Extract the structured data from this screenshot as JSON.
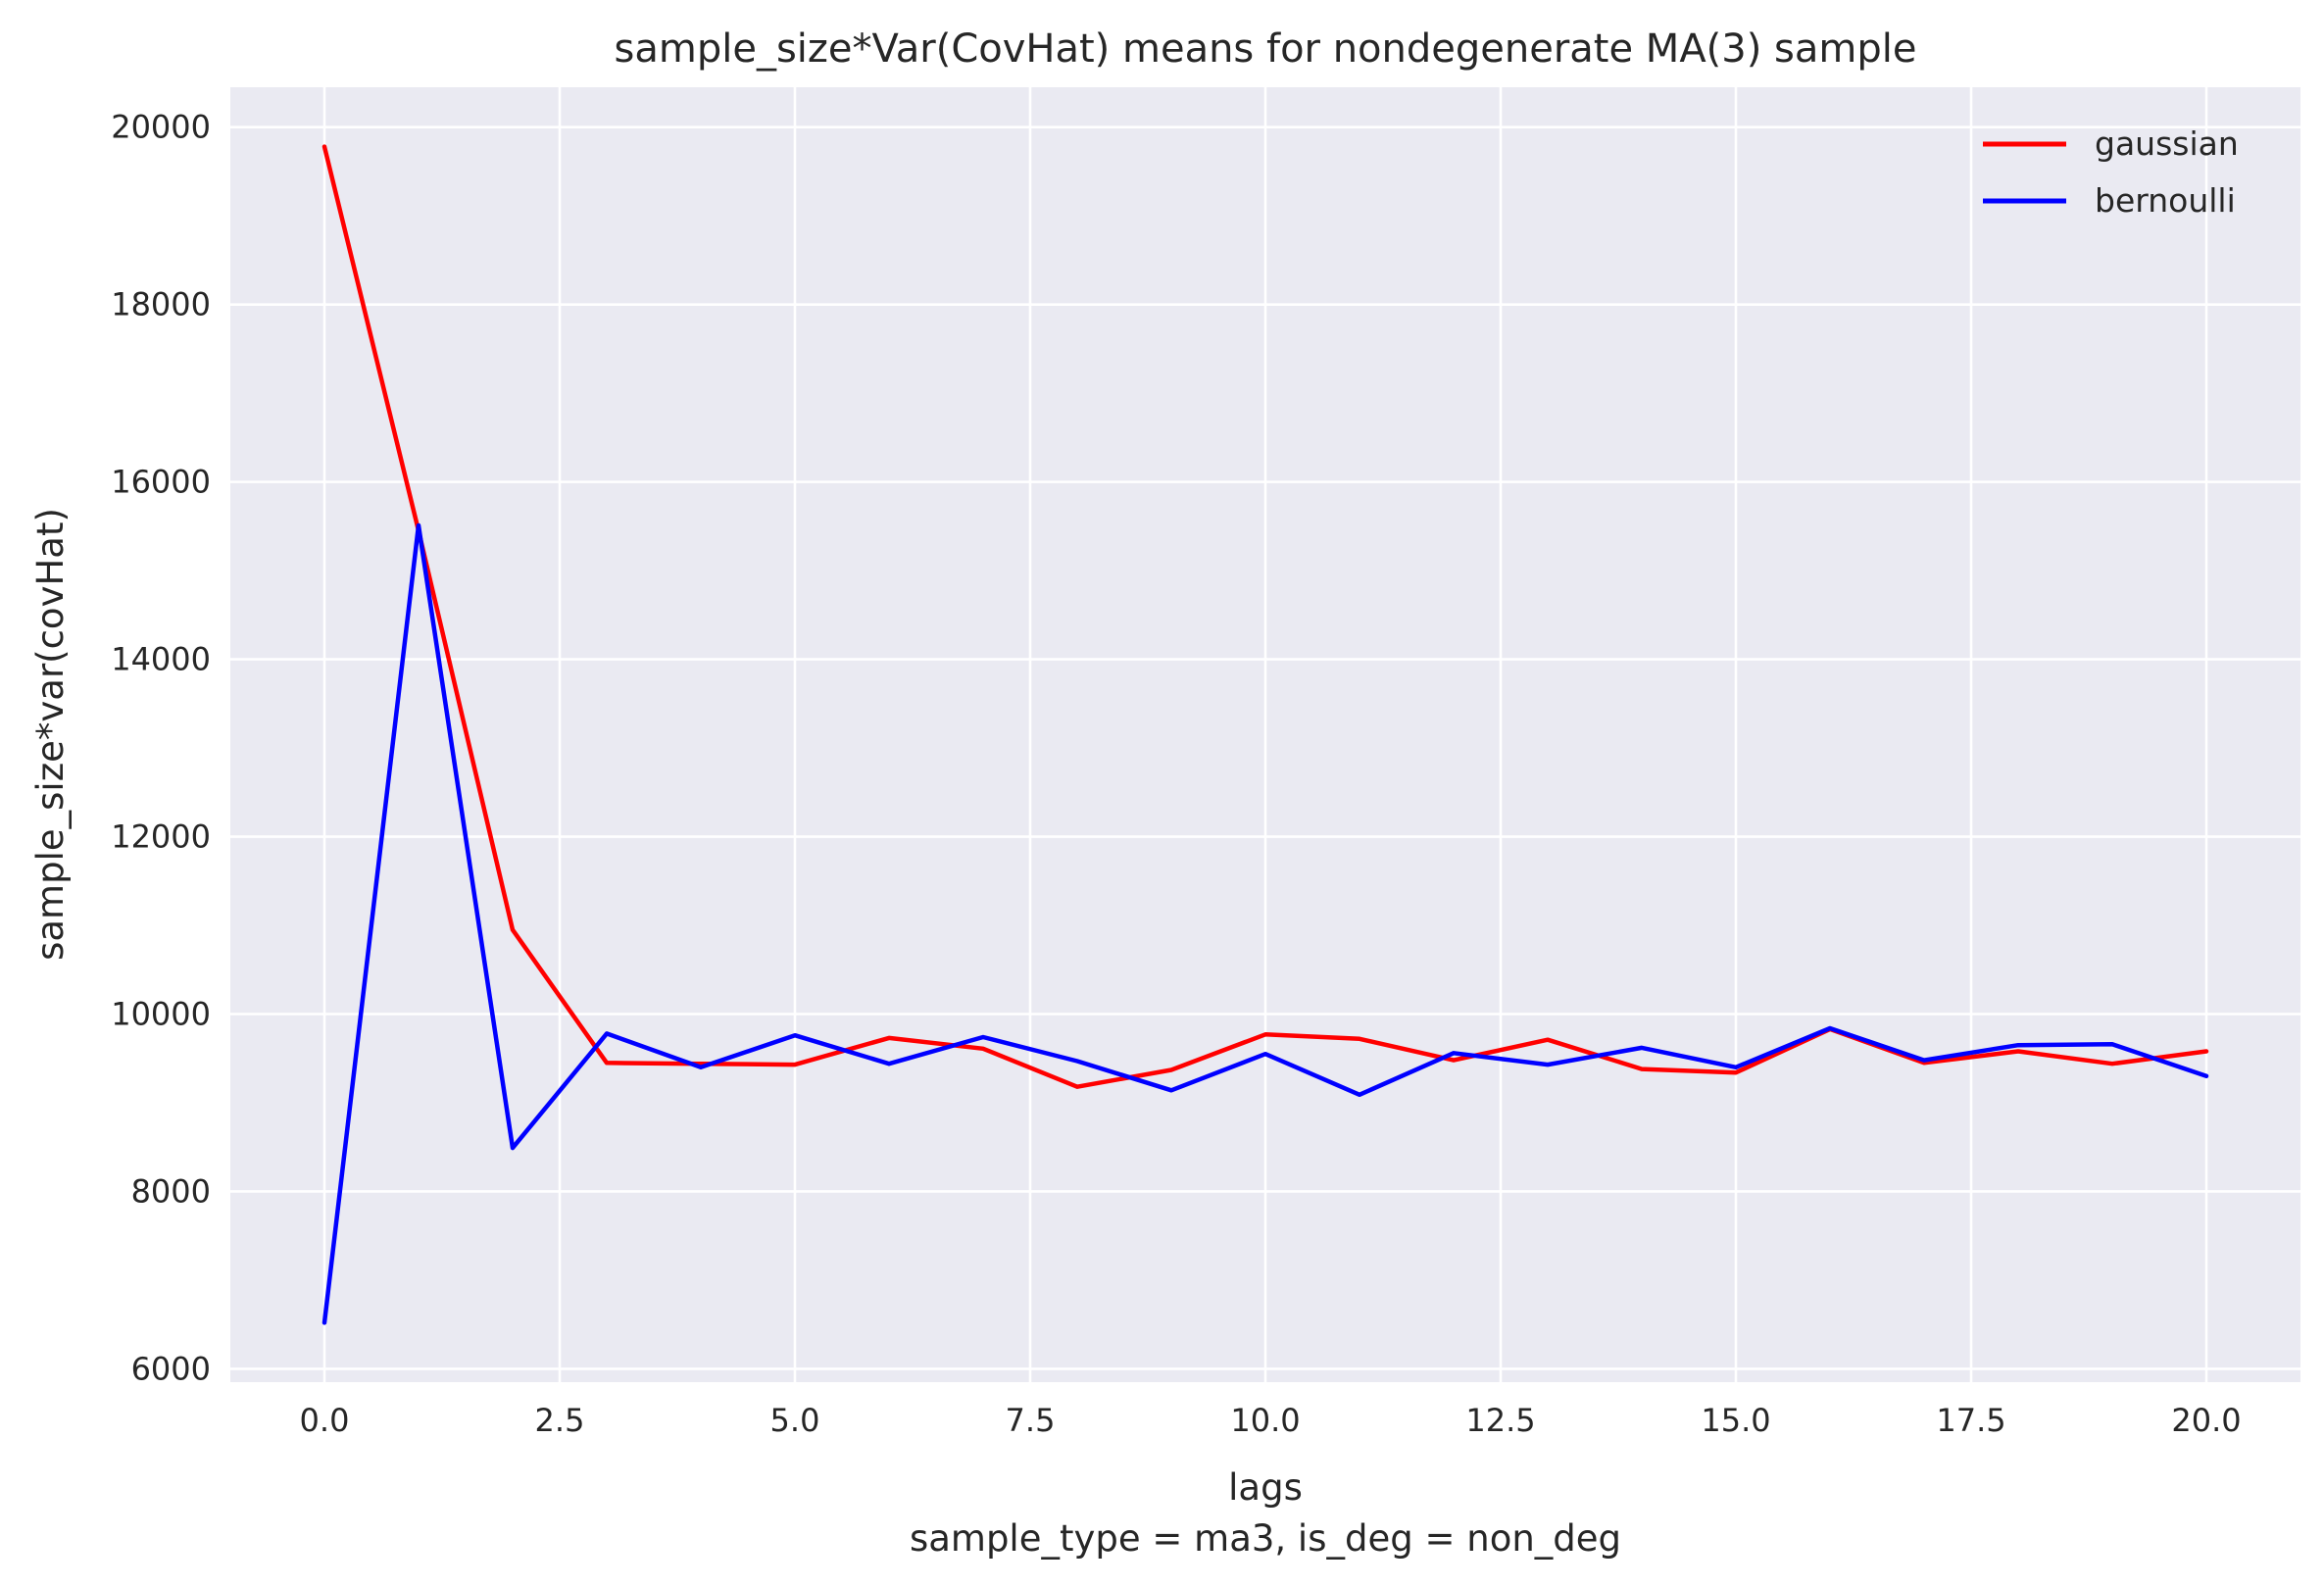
{
  "chart_data": {
    "type": "line",
    "title": "sample_size*Var(CovHat) means for nondegenerate MA(3) sample",
    "xlabel": "lags",
    "xlabel_note": "sample_type = ma3, is_deg = non_deg",
    "ylabel": "sample_size*var(covHat)",
    "xlim": [
      -1.0,
      21.0
    ],
    "ylim": [
      5850,
      20450
    ],
    "xticks": [
      0.0,
      2.5,
      5.0,
      7.5,
      10.0,
      12.5,
      15.0,
      17.5,
      20.0
    ],
    "xtick_labels": [
      "0.0",
      "2.5",
      "5.0",
      "7.5",
      "10.0",
      "12.5",
      "15.0",
      "17.5",
      "20.0"
    ],
    "yticks": [
      6000,
      8000,
      10000,
      12000,
      14000,
      16000,
      18000,
      20000
    ],
    "ytick_labels": [
      "6000",
      "8000",
      "10000",
      "12000",
      "14000",
      "16000",
      "18000",
      "20000"
    ],
    "grid": true,
    "legend_position": "top-right",
    "x": [
      0,
      1,
      2,
      3,
      4,
      5,
      6,
      7,
      8,
      9,
      10,
      11,
      12,
      13,
      14,
      15,
      16,
      17,
      18,
      19,
      20
    ],
    "series": [
      {
        "name": "gaussian",
        "color": "#ff0000",
        "values": [
          19780,
          15450,
          10950,
          9450,
          9440,
          9430,
          9730,
          9610,
          9180,
          9370,
          9770,
          9720,
          9480,
          9710,
          9380,
          9340,
          9830,
          9450,
          9580,
          9440,
          9580
        ]
      },
      {
        "name": "bernoulli",
        "color": "#0000ff",
        "values": [
          6520,
          15510,
          8490,
          9780,
          9400,
          9760,
          9440,
          9740,
          9470,
          9140,
          9550,
          9090,
          9560,
          9430,
          9620,
          9400,
          9840,
          9480,
          9650,
          9660,
          9300
        ]
      }
    ]
  },
  "colors": {
    "plot_background": "#eaeaf2",
    "grid": "#ffffff",
    "text": "#262626"
  }
}
